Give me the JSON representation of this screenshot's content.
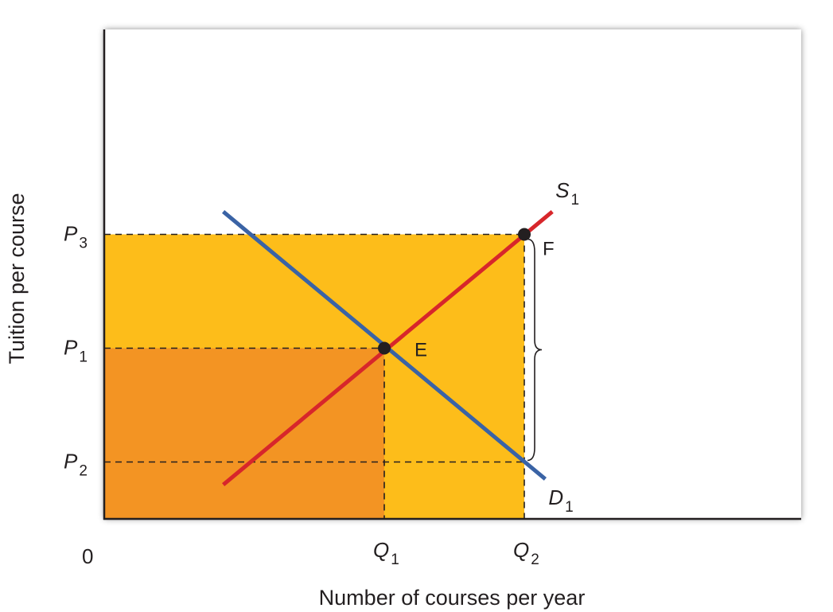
{
  "chart_data": {
    "type": "line",
    "xlabel": "Number of courses per year",
    "ylabel": "Tuition per course",
    "origin_label": "0",
    "colors": {
      "supply": "#d7262b",
      "demand": "#3a63a5",
      "yellow_area": "#fdbd1a",
      "orange_area": "#f39423",
      "frame": "#231f20"
    },
    "price_levels": [
      {
        "main": "P",
        "sub": "3",
        "value": 2.5
      },
      {
        "main": "P",
        "sub": "1",
        "value": 1.5
      },
      {
        "main": "P",
        "sub": "2",
        "value": 0.5
      }
    ],
    "quantity_levels": [
      {
        "main": "Q",
        "sub": "1",
        "value": 2.0
      },
      {
        "main": "Q",
        "sub": "2",
        "value": 3.0
      }
    ],
    "series": [
      {
        "name_main": "S",
        "name_sub": "1",
        "role": "supply",
        "x": [
          0.85,
          3.2
        ],
        "y": [
          0.3,
          2.7
        ]
      },
      {
        "name_main": "D",
        "name_sub": "1",
        "role": "demand",
        "x": [
          0.85,
          3.15
        ],
        "y": [
          2.7,
          0.35
        ]
      }
    ],
    "points": [
      {
        "label": "E",
        "x": 2.0,
        "y": 1.5
      },
      {
        "label": "F",
        "x": 3.0,
        "y": 2.5
      }
    ],
    "shaded_areas": [
      {
        "role": "yellow_area",
        "x": [
          0,
          3.0
        ],
        "y": [
          0,
          2.5
        ]
      },
      {
        "role": "orange_area",
        "x": [
          0,
          2.0
        ],
        "y": [
          0,
          1.5
        ]
      }
    ],
    "brace": {
      "x": 3.0,
      "y": [
        0.5,
        2.5
      ]
    },
    "xlim": [
      0,
      4.9
    ],
    "ylim": [
      0,
      4.3
    ]
  }
}
